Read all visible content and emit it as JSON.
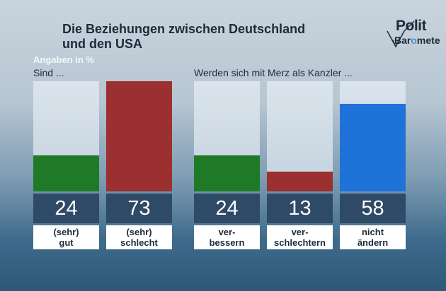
{
  "title_line1": "Die Beziehungen zwischen Deutschland",
  "title_line2": "und den USA",
  "logo": {
    "top": "Polit",
    "bottom_a": "Bar",
    "bottom_b": "o",
    "bottom_c": "mete"
  },
  "chart_data": [
    {
      "type": "bar",
      "subtitle": "Angaben in %",
      "group_label": "Sind ...",
      "categories": [
        "(sehr)\ngut",
        "(sehr)\nschlecht"
      ],
      "values": [
        24,
        73
      ],
      "colors": [
        "#1e7a26",
        "#9c2f30"
      ],
      "value_labels": [
        "24",
        "73"
      ],
      "ylim": [
        0,
        73
      ]
    },
    {
      "type": "bar",
      "group_label": "Werden sich mit Merz als Kanzler ...",
      "categories": [
        "ver-\nbessern",
        "ver-\nschlechtern",
        "nicht\nändern"
      ],
      "values": [
        24,
        13,
        58
      ],
      "colors": [
        "#1e7a26",
        "#9c2f30",
        "#1f72d8"
      ],
      "value_labels": [
        "24",
        "13",
        "58"
      ],
      "ylim": [
        0,
        73
      ]
    }
  ]
}
